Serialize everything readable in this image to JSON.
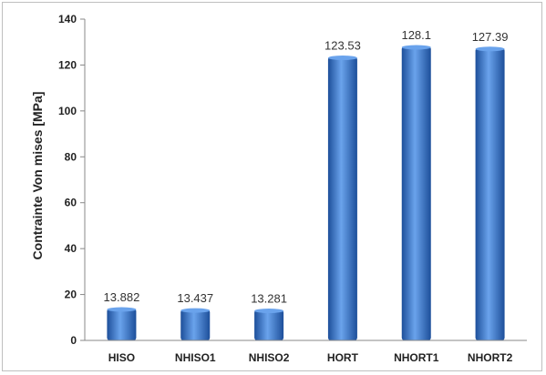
{
  "chart_data": {
    "type": "bar",
    "title": "",
    "xlabel": "",
    "ylabel": "Contrainte Von mises [MPa]",
    "categories": [
      "HISO",
      "NHISO1",
      "NHISO2",
      "HORT",
      "NHORT1",
      "NHORT2"
    ],
    "values": [
      13.882,
      13.437,
      13.281,
      123.53,
      128.1,
      127.39
    ],
    "data_labels": [
      "13.882",
      "13.437",
      "13.281",
      "123.53",
      "128.1",
      "127.39"
    ],
    "ylim": [
      0,
      140
    ],
    "yticks": [
      0,
      20,
      40,
      60,
      80,
      100,
      120,
      140
    ],
    "grid": false,
    "legend": "none",
    "bar_color": "#2f6fcf",
    "bar_color_dark": "#1d4f9a",
    "bar_color_light": "#6aa3ec"
  }
}
